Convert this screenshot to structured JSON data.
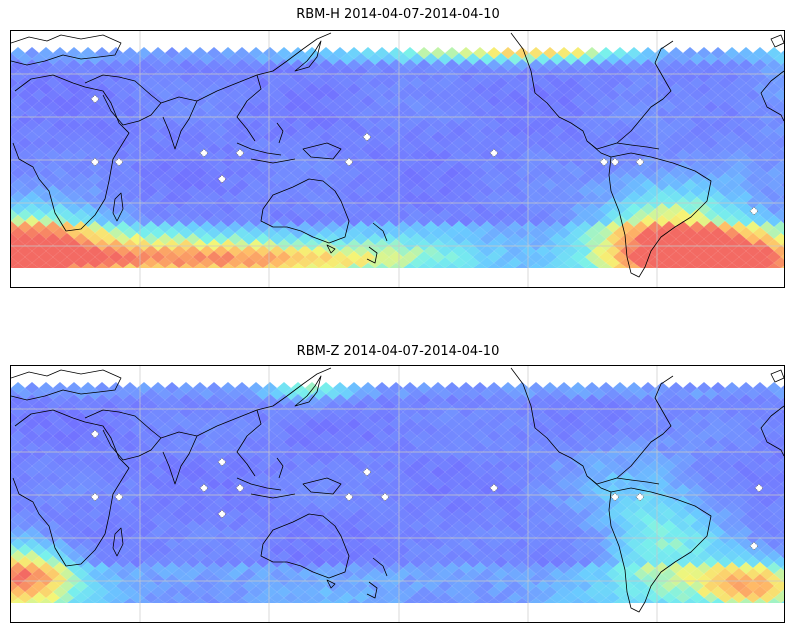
{
  "panels": [
    {
      "title": "RBM-H 2014-04-07-2014-04-10",
      "field": {
        "hot_spots": [
          "south-pacific-east",
          "south-atlantic-west",
          "north-atlantic-band",
          "southern-indian-ocean"
        ],
        "description_level": "higher"
      }
    },
    {
      "title": "RBM-Z 2014-04-07-2014-04-10",
      "field": {
        "hot_spots": [
          "south-atlantic-west",
          "southern-tip-africa"
        ],
        "description_level": "lower"
      }
    }
  ],
  "colors": {
    "colormap": [
      "#6a6cff",
      "#6c8cff",
      "#62c8ff",
      "#72f0ea",
      "#f4f56f",
      "#ffb95f",
      "#f2625b"
    ],
    "coastline": "#000000",
    "gridline": "#c8c8c8",
    "frame": "#000000"
  },
  "icons": {
    "station_marker": "white-diamond-marker-icon"
  }
}
